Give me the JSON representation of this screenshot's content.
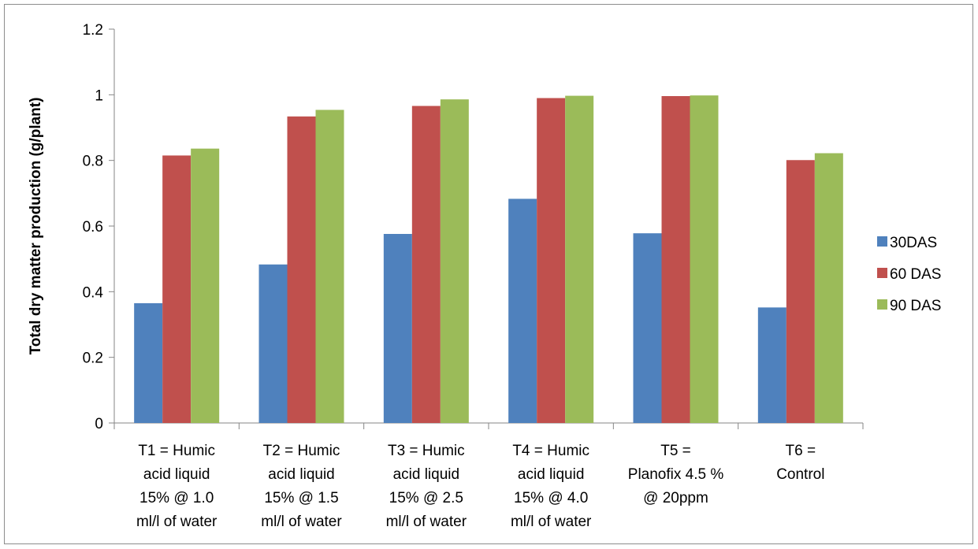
{
  "chart_data": {
    "type": "bar",
    "title": "",
    "xlabel": "",
    "ylabel": "Total dry matter production (g/plant)",
    "ylim": [
      0,
      1.2
    ],
    "yticks": [
      "0",
      "0.2",
      "0.4",
      "0.6",
      "0.8",
      "1",
      "1.2"
    ],
    "grid": false,
    "legend_position": "right",
    "categories": [
      [
        "T1   =   Humic",
        "acid liquid",
        "15% @ 1.0",
        "ml/l of water"
      ],
      [
        "T2   =   Humic",
        "acid liquid",
        "15% @ 1.5",
        "ml/l of water"
      ],
      [
        "T3   =   Humic",
        "acid liquid",
        "15% @ 2.5",
        "ml/l of water"
      ],
      [
        "T4   =   Humic",
        "acid liquid",
        "15% @ 4.0",
        "ml/l of water"
      ],
      [
        "T5     =",
        "Planofix 4.5 %",
        "@ 20ppm"
      ],
      [
        "T6    =",
        "Control"
      ]
    ],
    "series": [
      {
        "name": "30DAS",
        "color": "#4F81BD",
        "values": [
          0.365,
          0.483,
          0.576,
          0.683,
          0.578,
          0.352
        ]
      },
      {
        "name": "60 DAS",
        "color": "#C0504D",
        "values": [
          0.815,
          0.934,
          0.966,
          0.99,
          0.996,
          0.801
        ]
      },
      {
        "name": "90 DAS",
        "color": "#9BBB59",
        "values": [
          0.836,
          0.954,
          0.986,
          0.997,
          0.998,
          0.822
        ]
      }
    ]
  }
}
